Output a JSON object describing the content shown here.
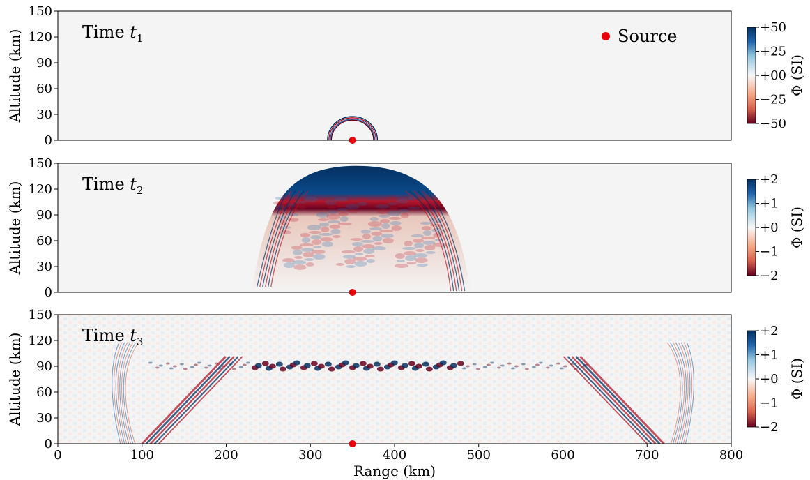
{
  "chart_data": {
    "type": "heatmap",
    "x_label": "Range (km)",
    "y_label": "Altitude (km)",
    "x_ticks": [
      0,
      100,
      200,
      300,
      400,
      500,
      600,
      700,
      800
    ],
    "y_ticks": [
      0,
      30,
      60,
      90,
      120,
      150
    ],
    "xlim": [
      0,
      800
    ],
    "ylim": [
      0,
      150
    ],
    "source": {
      "x": 350,
      "y": 0,
      "color": "#e8000b",
      "legend_label": "Source"
    },
    "panels": [
      {
        "label": "Time t1",
        "label_text": "Time ",
        "label_var": "t",
        "label_sub": "1",
        "colorbar_label": "Φ (SI)",
        "colorbar_ticks": [
          "+50",
          "+25",
          "+00",
          "−25",
          "−50"
        ],
        "colorbar_range": [
          -50,
          50
        ],
        "wavefront": {
          "center_x": 350,
          "radius_km": 28
        }
      },
      {
        "label": "Time t2",
        "label_text": "Time ",
        "label_var": "t",
        "label_sub": "2",
        "colorbar_label": "Φ (SI)",
        "colorbar_ticks": [
          "+2",
          "+1",
          "+0",
          "−1",
          "−2"
        ],
        "colorbar_range": [
          -2,
          2
        ],
        "wavefront": {
          "center_x": 355,
          "x_extent": [
            230,
            490
          ],
          "top_altitude": 147
        }
      },
      {
        "label": "Time t3",
        "label_text": "Time ",
        "label_var": "t",
        "label_sub": "3",
        "colorbar_label": "Φ (SI)",
        "colorbar_ticks": [
          "+2",
          "+1",
          "+0",
          "−1",
          "−2"
        ],
        "colorbar_range": [
          -2,
          2
        ],
        "wavefront": {
          "fronts_x": [
            100,
            720
          ],
          "band_altitude": 90
        }
      }
    ],
    "colormap": {
      "name": "RdBu",
      "negative": "#67001f",
      "mid": "#f7f7f7",
      "positive": "#053061"
    },
    "background": "#f4f4f4"
  }
}
